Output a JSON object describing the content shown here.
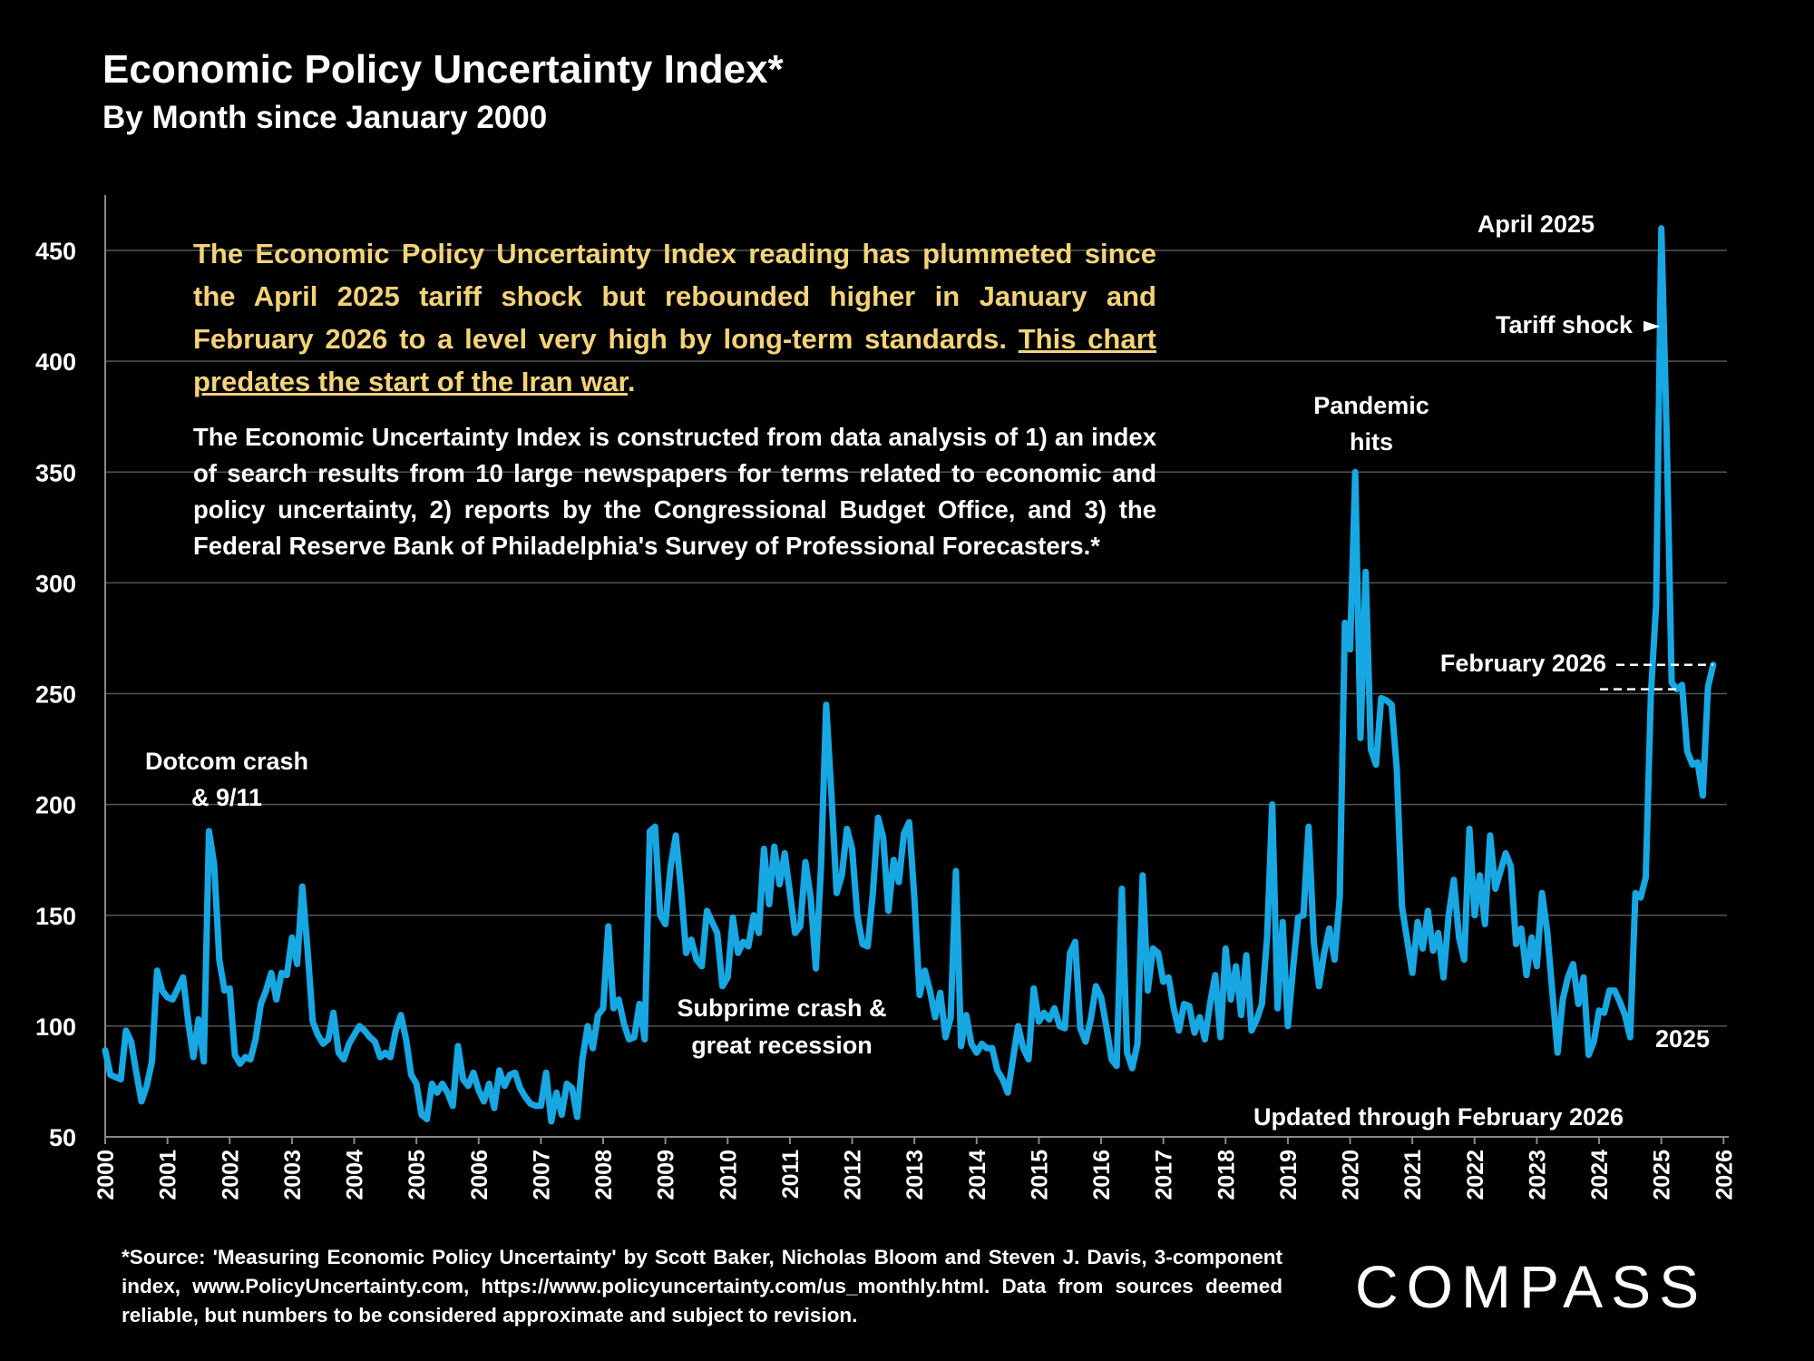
{
  "title": "Economic Policy Uncertainty Index*",
  "subtitle": "By Month since January 2000",
  "callout": {
    "headline": "The Economic Policy Uncertainty Index reading has plummeted since the April 2025 tariff shock but rebounded higher in January and February 2026 to a level very high by long-term standards.",
    "headline_link": "This chart predates the start of the Iran war",
    "headline_end": ".",
    "body": "The Economic Uncertainty Index is constructed from data analysis of 1) an index of search results from 10 large newspapers for terms related to economic and policy uncertainty, 2) reports by the Congressional Budget Office, and 3) the Federal Reserve Bank of Philadelphia's Survey of Professional Forecasters.*"
  },
  "annotations": {
    "dotcom_1": "Dotcom crash",
    "dotcom_2": "& 9/11",
    "subprime_1": "Subprime crash &",
    "subprime_2": "great recession",
    "pandemic_1": "Pandemic",
    "pandemic_2": "hits",
    "april": "April 2025",
    "tariff": "Tariff shock",
    "tariff_arrow": "►",
    "february": "February 2026",
    "y2025": "2025",
    "updated": "Updated through February 2026"
  },
  "footnote": "*Source: 'Measuring Economic Policy Uncertainty' by Scott Baker, Nicholas Bloom and Steven J. Davis, 3-component index, www.PolicyUncertainty.com, https://www.policyuncertainty.com/us_monthly.html. Data from sources deemed reliable, but numbers to be considered approximate and subject to revision.",
  "logo": "COMPASS",
  "colors": {
    "line": "#17a8e3",
    "callout": "#f3d37a",
    "grid": "#555555",
    "background": "#000000"
  },
  "chart_data": {
    "type": "line",
    "title": "Economic Policy Uncertainty Index*",
    "subtitle": "By Month since January 2000",
    "xlabel": "",
    "ylabel": "",
    "x_start": "2000-01",
    "x_end": "2026-02",
    "x_ticks": [
      "2000",
      "2001",
      "2002",
      "2003",
      "2004",
      "2005",
      "2006",
      "2007",
      "2008",
      "2009",
      "2010",
      "2011",
      "2012",
      "2013",
      "2014",
      "2015",
      "2016",
      "2017",
      "2018",
      "2019",
      "2020",
      "2021",
      "2022",
      "2023",
      "2024",
      "2025",
      "2026"
    ],
    "y_ticks": [
      50,
      100,
      150,
      200,
      250,
      300,
      350,
      400,
      450
    ],
    "ylim": [
      50,
      475
    ],
    "grid": true,
    "series": [
      {
        "values": [
          89,
          78,
          77,
          76,
          98,
          93,
          79,
          66,
          73,
          84,
          125,
          116,
          113,
          112,
          117,
          122,
          102,
          86,
          103,
          84,
          188,
          173,
          130,
          116,
          117,
          87,
          83,
          86,
          85,
          94,
          110,
          116,
          124,
          112,
          124,
          123,
          140,
          128,
          163,
          135,
          102,
          96,
          92,
          94,
          106,
          88,
          85,
          92,
          96,
          100,
          98,
          95,
          93,
          86,
          88,
          86,
          98,
          105,
          94,
          78,
          74,
          60,
          58,
          74,
          70,
          74,
          70,
          64,
          91,
          76,
          73,
          79,
          71,
          66,
          74,
          63,
          80,
          73,
          78,
          79,
          72,
          68,
          65,
          64,
          64,
          79,
          57,
          70,
          60,
          74,
          72,
          59,
          85,
          100,
          90,
          105,
          108,
          145,
          108,
          112,
          101,
          94,
          95,
          110,
          94,
          188,
          190,
          150,
          146,
          172,
          186,
          162,
          133,
          139,
          130,
          127,
          152,
          147,
          142,
          118,
          122,
          149,
          133,
          138,
          136,
          150,
          142,
          180,
          155,
          181,
          164,
          178,
          160,
          142,
          145,
          174,
          158,
          126,
          172,
          245,
          205,
          160,
          168,
          189,
          180,
          150,
          137,
          136,
          160,
          194,
          185,
          152,
          175,
          165,
          187,
          192,
          158,
          114,
          125,
          116,
          104,
          115,
          95,
          104,
          170,
          91,
          105,
          92,
          88,
          92,
          90,
          90,
          80,
          76,
          70,
          85,
          100,
          90,
          85,
          117,
          102,
          106,
          103,
          108,
          100,
          99,
          133,
          138,
          99,
          93,
          103,
          118,
          113,
          100,
          85,
          82,
          162,
          88,
          81,
          92,
          168,
          116,
          135,
          133,
          120,
          122,
          108,
          98,
          110,
          109,
          97,
          104,
          94,
          110,
          123,
          95,
          135,
          112,
          127,
          105,
          132,
          98,
          103,
          110,
          140,
          200,
          108,
          147,
          100,
          126,
          149,
          150,
          190,
          138,
          118,
          133,
          144,
          130,
          158,
          282,
          270,
          350,
          230,
          305,
          225,
          218,
          248,
          247,
          245,
          216,
          154,
          139,
          124,
          147,
          135,
          152,
          134,
          142,
          122,
          150,
          166,
          140,
          130,
          189,
          150,
          168,
          146,
          186,
          162,
          170,
          178,
          172,
          137,
          144,
          123,
          140,
          127,
          160,
          143,
          115,
          88,
          112,
          122,
          128,
          110,
          122,
          87,
          93,
          107,
          106,
          116,
          116,
          111,
          105,
          95,
          160,
          158,
          167,
          250,
          290,
          460,
          370,
          255,
          252,
          254,
          224,
          218,
          219,
          204,
          253,
          263
        ]
      }
    ]
  }
}
